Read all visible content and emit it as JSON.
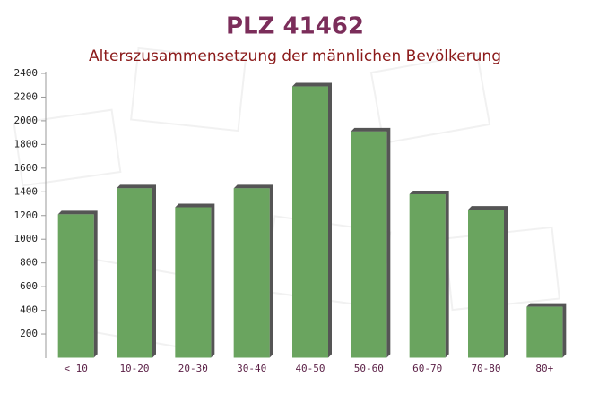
{
  "chart_data": {
    "type": "bar",
    "title": "PLZ 41462",
    "subtitle": "Alterszusammensetzung der männlichen Bevölkerung",
    "categories": [
      "< 10",
      "10-20",
      "20-30",
      "30-40",
      "40-50",
      "50-60",
      "60-70",
      "70-80",
      "80+"
    ],
    "values": [
      1210,
      1430,
      1270,
      1430,
      2290,
      1910,
      1380,
      1250,
      430
    ],
    "color": "#6aa45f",
    "ylim": [
      0,
      2400
    ],
    "yticks": [
      200,
      400,
      600,
      800,
      1000,
      1200,
      1400,
      1600,
      1800,
      2000,
      2200,
      2400
    ],
    "grid": false
  }
}
